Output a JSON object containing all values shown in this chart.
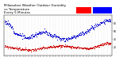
{
  "title": "Milwaukee Weather Outdoor Humidity",
  "subtitle1": "vs Temperature",
  "subtitle2": "Every 5 Minutes",
  "humidity_color": "#0000cc",
  "temp_color": "#cc0000",
  "legend_red_color": "#ff0000",
  "legend_blue_color": "#0000ff",
  "bg_color": "#ffffff",
  "grid_color": "#bbbbbb",
  "ylim": [
    0,
    100
  ],
  "n_points": 288,
  "title_fontsize": 3.0,
  "tick_fontsize": 2.2,
  "marker_size": 0.8,
  "humidity_profile": [
    85,
    75,
    55,
    50,
    42,
    48,
    55,
    60,
    52,
    48,
    42,
    40,
    45,
    50,
    55,
    62,
    72,
    80,
    85,
    88
  ],
  "temp_profile": [
    22,
    20,
    18,
    15,
    14,
    13,
    16,
    18,
    20,
    22,
    24,
    23,
    22,
    20,
    18,
    16,
    20,
    25,
    28,
    30
  ]
}
